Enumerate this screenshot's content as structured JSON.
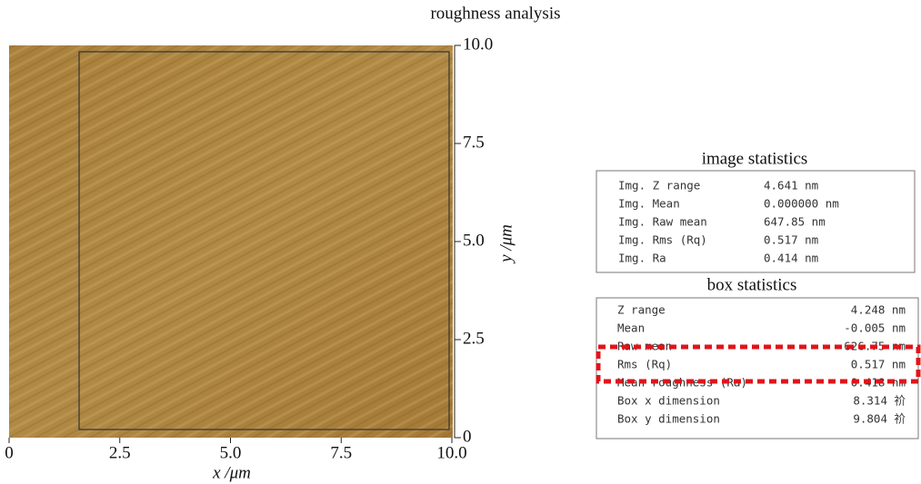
{
  "figure": {
    "title": "roughness analysis",
    "xlabel": "x /μm",
    "ylabel": "y /μm",
    "xlim": [
      0,
      10
    ],
    "ylim": [
      0,
      10
    ],
    "xticks": [
      0,
      {
        "value": 2.5,
        "label": "2.5"
      },
      {
        "value": 5,
        "label": "5.0"
      },
      {
        "value": 7.5,
        "label": "7.5"
      },
      {
        "value": 10,
        "label": "10.0"
      }
    ],
    "yticks": [
      0,
      {
        "value": 2.5,
        "label": "2.5"
      },
      {
        "value": 5,
        "label": "5.0"
      },
      {
        "value": 7.5,
        "label": "7.5"
      },
      {
        "value": 10,
        "label": "10.0"
      }
    ]
  },
  "image_statistics": {
    "title": "image statistics",
    "rows": [
      [
        "Img. Z range",
        "4.641 nm"
      ],
      [
        "Img. Mean",
        "0.000000 nm"
      ],
      [
        "Img. Raw mean",
        "647.85 nm"
      ],
      [
        "Img. Rms (Rq)",
        "0.517 nm"
      ],
      [
        "Img. Ra",
        "0.414 nm"
      ]
    ]
  },
  "box_statistics": {
    "title": "box statistics",
    "rows": [
      [
        "Z range",
        "4.248 nm"
      ],
      [
        "Mean",
        "-0.005 nm"
      ],
      [
        "Raw mean",
        "626.75 nm"
      ],
      [
        "Rms (Rq)",
        "0.517 nm"
      ],
      [
        "Mean roughness (Ra)",
        "0.418 nm"
      ],
      [
        "Box x dimension",
        "8.314 祄"
      ],
      [
        "Box y dimension",
        "9.804 祄"
      ]
    ]
  }
}
